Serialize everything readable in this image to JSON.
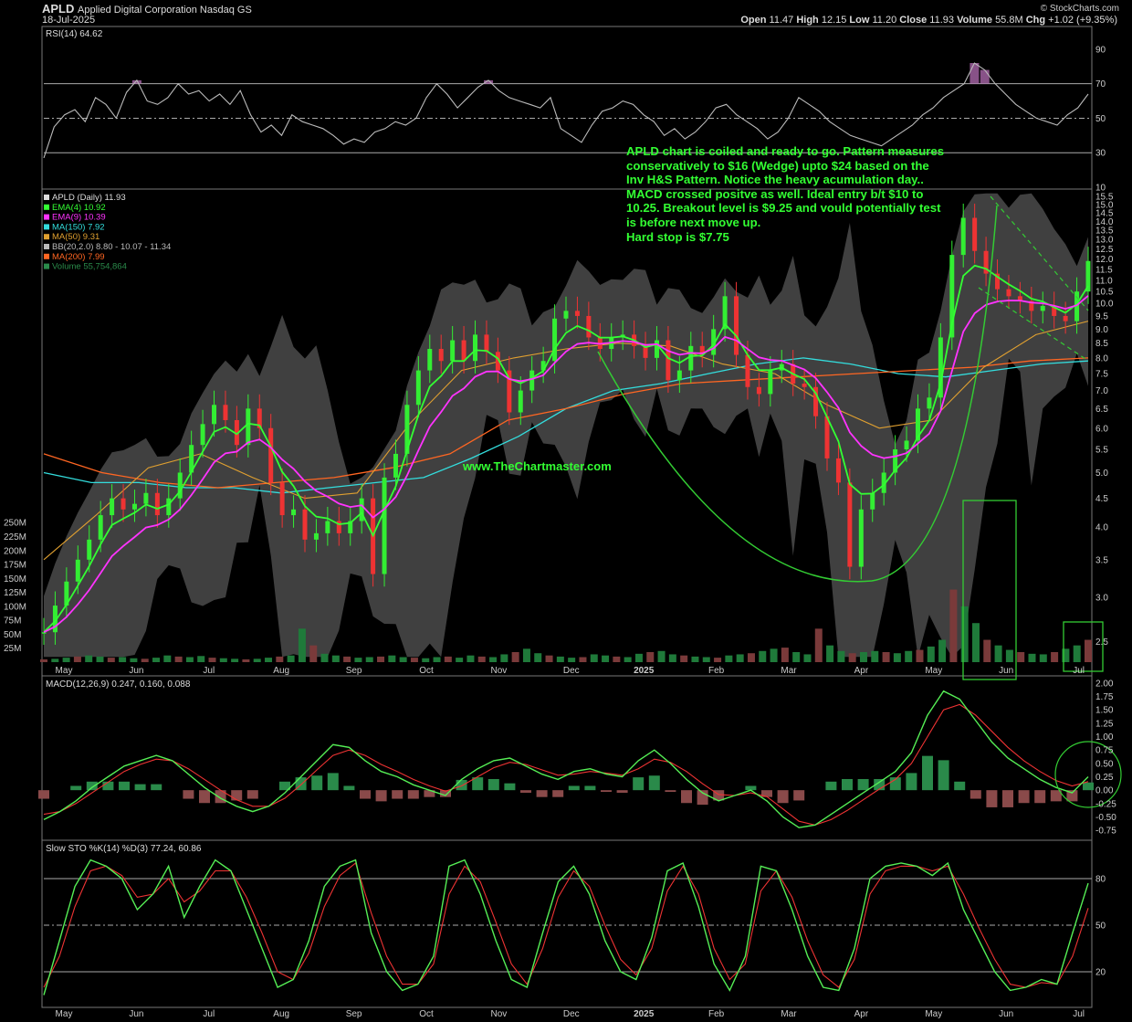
{
  "header": {
    "symbol": "APLD",
    "company": "Applied Digital Corporation",
    "exchange": "Nasdaq GS",
    "date": "18-Jul-2025",
    "brand": "© StockCharts.com",
    "open_label": "Open",
    "open": "11.47",
    "high_label": "High",
    "high": "12.15",
    "low_label": "Low",
    "low": "11.20",
    "close_label": "Close",
    "close": "11.93",
    "volume_label": "Volume",
    "volume": "55.8M",
    "chg_label": "Chg",
    "chg": "+1.02 (+9.35%)"
  },
  "annotation": {
    "lines": [
      "APLD chart is coiled and ready to go. Pattern measures",
      "conservatively to $16 (Wedge) upto $24 based on the",
      "Inv H&S Pattern. Notice the heavy acumulation day..",
      "MACD crossed positve as well. Ideal entry b/t $10 to",
      "10.25. Breakout level is $9.25 and vould potentially test",
      "is before next move up.",
      "Hard stop is $7.75"
    ],
    "watermark": "www.TheChartmaster.com"
  },
  "colors": {
    "price_up": "#33ee33",
    "price_down": "#ee3333",
    "ema4": "#33ff33",
    "ema9": "#ff33ff",
    "ma150": "#33dddd",
    "ma50": "#e0a030",
    "ma200": "#ff6622",
    "bb": "#555555",
    "volume": "#1f7a3a",
    "volume_down": "#7a3a3a",
    "rsi_line": "#bbbbbb",
    "rsi_fill": "#aa66aa",
    "macd_line": "#55ee55",
    "signal_line": "#ee3333",
    "hist_pos": "#2a8a4a",
    "hist_neg": "#8a4a4a",
    "sto_k": "#55ee55",
    "sto_d": "#ee3333",
    "annotation": "#33ff33",
    "wedge_line": "#33cc33"
  },
  "chart_data": [
    {
      "type": "line",
      "panel": "RSI",
      "title": "RSI(14) 64.62",
      "ylim": [
        10,
        100
      ],
      "y_ticks": [
        "90",
        "70",
        "50",
        "30",
        "10"
      ],
      "reference_lines": [
        70,
        50,
        30
      ],
      "series": [
        {
          "name": "RSI(14)",
          "values": [
            27,
            45,
            52,
            55,
            48,
            62,
            58,
            50,
            65,
            72,
            60,
            58,
            62,
            70,
            64,
            66,
            60,
            64,
            58,
            66,
            52,
            42,
            46,
            40,
            52,
            48,
            46,
            44,
            40,
            35,
            38,
            36,
            42,
            44,
            48,
            46,
            50,
            62,
            70,
            64,
            56,
            62,
            68,
            72,
            66,
            62,
            60,
            58,
            56,
            62,
            44,
            40,
            36,
            46,
            54,
            56,
            60,
            58,
            52,
            48,
            40,
            44,
            38,
            42,
            48,
            56,
            58,
            52,
            48,
            44,
            38,
            42,
            50,
            62,
            58,
            54,
            48,
            44,
            40,
            38,
            36,
            34,
            38,
            42,
            46,
            52,
            56,
            62,
            66,
            70,
            82,
            78,
            70,
            64,
            58,
            54,
            50,
            48,
            46,
            52,
            56,
            64
          ]
        }
      ]
    },
    {
      "type": "line",
      "panel": "Price",
      "title": "APLD (Daily) 11.93",
      "x_ticks": [
        "May",
        "Jun",
        "Jul",
        "Aug",
        "Sep",
        "Oct",
        "Nov",
        "Dec",
        "2025",
        "Feb",
        "Mar",
        "Apr",
        "May",
        "Jun",
        "Jul"
      ],
      "y_ticks": [
        "15.5",
        "15.0",
        "14.5",
        "14.0",
        "13.5",
        "13.0",
        "12.5",
        "12.0",
        "11.5",
        "11.0",
        "10.5",
        "10.0",
        "9.5",
        "9.0",
        "8.5",
        "8.0",
        "7.5",
        "7.0",
        "6.5",
        "6.0",
        "5.5",
        "5.0",
        "4.5",
        "4.0",
        "3.5",
        "3.0",
        "2.5"
      ],
      "y_scale": "log",
      "ylim": [
        2.3,
        15.8
      ],
      "legend": [
        {
          "label": "APLD (Daily) 11.93",
          "color": "#dddddd"
        },
        {
          "label": "EMA(4) 10.92",
          "color": "#33ff33"
        },
        {
          "label": "EMA(9) 10.39",
          "color": "#ff33ff"
        },
        {
          "label": "MA(150) 7.92",
          "color": "#33dddd"
        },
        {
          "label": "MA(50) 9.31",
          "color": "#e0a030"
        },
        {
          "label": "BB(20,2.0) 8.80 - 10.07 - 11.34",
          "color": "#bbbbbb"
        },
        {
          "label": "MA(200) 7.99",
          "color": "#ff6622"
        },
        {
          "label": "Volume 55,754,864",
          "color": "#2a8a4a"
        }
      ],
      "series": [
        {
          "name": "APLD",
          "values": [
            2.6,
            2.9,
            3.2,
            3.5,
            3.8,
            4.2,
            4.5,
            4.3,
            4.4,
            4.6,
            4.2,
            4.5,
            5.0,
            5.6,
            6.1,
            6.6,
            6.2,
            5.6,
            6.5,
            6.0,
            4.8,
            4.2,
            4.3,
            3.8,
            3.9,
            4.1,
            3.9,
            4.1,
            4.5,
            3.3,
            4.9,
            5.4,
            6.6,
            7.6,
            8.3,
            7.9,
            8.6,
            7.9,
            8.8,
            8.2,
            7.6,
            6.4,
            7.0,
            7.6,
            7.9,
            9.4,
            9.7,
            9.5,
            8.7,
            8.3,
            8.7,
            8.8,
            8.4,
            8.0,
            8.6,
            7.3,
            7.6,
            8.4,
            8.1,
            9.0,
            10.3,
            8.1,
            7.1,
            6.9,
            7.6,
            7.8,
            7.2,
            7.1,
            6.3,
            5.3,
            4.8,
            3.4,
            4.3,
            4.6,
            5.0,
            5.5,
            5.7,
            6.5,
            6.8,
            8.7,
            12.2,
            14.2,
            12.4,
            11.3,
            10.6,
            10.3,
            10.1,
            9.7,
            9.9,
            9.5,
            9.3,
            10.5,
            11.9
          ]
        },
        {
          "name": "MA(150)",
          "values": [
            5.0,
            4.8,
            4.8,
            4.7,
            4.7,
            4.6,
            4.7,
            4.8,
            4.9,
            5.3,
            5.8,
            6.5,
            7.0,
            7.2,
            7.5,
            7.8,
            8.0,
            7.8,
            7.5,
            7.4,
            7.6,
            7.8,
            7.9
          ]
        },
        {
          "name": "MA(200)",
          "values": [
            5.4,
            5.0,
            4.8,
            4.7,
            4.8,
            4.9,
            5.1,
            5.4,
            6.2,
            6.5,
            6.9,
            7.2,
            7.3,
            7.4,
            7.5,
            7.6,
            7.7,
            7.9,
            8.0
          ]
        },
        {
          "name": "MA(50)",
          "values": [
            3.5,
            4.2,
            5.1,
            5.4,
            4.9,
            4.5,
            4.6,
            6.1,
            7.6,
            8.0,
            8.3,
            8.5,
            8.4,
            7.8,
            7.5,
            6.6,
            6.0,
            6.2,
            7.7,
            8.8,
            9.3
          ]
        }
      ]
    },
    {
      "type": "bar",
      "panel": "Volume",
      "y_ticks": [
        "250M",
        "225M",
        "200M",
        "175M",
        "150M",
        "125M",
        "100M",
        "75M",
        "50M",
        "25M"
      ],
      "ylim": [
        0,
        270
      ],
      "series": [
        {
          "name": "Volume",
          "values": [
            5,
            6,
            8,
            10,
            12,
            10,
            8,
            9,
            7,
            6,
            8,
            12,
            10,
            9,
            11,
            8,
            7,
            6,
            5,
            6,
            8,
            10,
            12,
            60,
            30,
            15,
            12,
            10,
            8,
            9,
            10,
            12,
            9,
            8,
            7,
            9,
            10,
            8,
            12,
            10,
            9,
            14,
            18,
            24,
            16,
            12,
            10,
            8,
            9,
            14,
            12,
            10,
            9,
            15,
            18,
            20,
            14,
            12,
            10,
            9,
            8,
            12,
            14,
            16,
            20,
            24,
            26,
            18,
            14,
            60,
            30,
            20,
            16,
            18,
            20,
            18,
            16,
            20,
            22,
            28,
            40,
            130,
            100,
            70,
            40,
            30,
            22,
            18,
            15,
            14,
            18,
            24,
            30,
            40
          ]
        }
      ]
    },
    {
      "type": "line",
      "panel": "MACD",
      "title": "MACD(12,26,9) 0.247, 0.160, 0.088",
      "y_ticks": [
        "2.00",
        "1.75",
        "1.50",
        "1.25",
        "1.00",
        "0.75",
        "0.50",
        "0.25",
        "0.00",
        "-0.25",
        "-0.50",
        "-0.75"
      ],
      "ylim": [
        -0.85,
        2.05
      ],
      "series": [
        {
          "name": "MACD",
          "values": [
            -0.55,
            -0.4,
            -0.2,
            0.05,
            0.25,
            0.45,
            0.55,
            0.65,
            0.55,
            0.3,
            0.05,
            -0.15,
            -0.3,
            -0.4,
            -0.3,
            -0.05,
            0.25,
            0.55,
            0.85,
            0.8,
            0.55,
            0.35,
            0.25,
            0.1,
            0.0,
            -0.1,
            0.2,
            0.4,
            0.55,
            0.6,
            0.45,
            0.3,
            0.2,
            0.35,
            0.4,
            0.3,
            0.25,
            0.55,
            0.75,
            0.5,
            0.2,
            -0.05,
            -0.2,
            -0.1,
            0.0,
            -0.2,
            -0.5,
            -0.7,
            -0.65,
            -0.45,
            -0.25,
            -0.05,
            0.15,
            0.35,
            0.7,
            1.4,
            1.85,
            1.7,
            1.3,
            0.9,
            0.6,
            0.4,
            0.2,
            0.05,
            -0.05,
            0.25
          ]
        },
        {
          "name": "Signal",
          "values": [
            -0.45,
            -0.4,
            -0.25,
            -0.05,
            0.15,
            0.35,
            0.48,
            0.58,
            0.55,
            0.4,
            0.2,
            0.0,
            -0.18,
            -0.3,
            -0.3,
            -0.15,
            0.1,
            0.38,
            0.65,
            0.75,
            0.65,
            0.48,
            0.35,
            0.2,
            0.08,
            -0.02,
            0.08,
            0.25,
            0.42,
            0.52,
            0.48,
            0.38,
            0.28,
            0.3,
            0.35,
            0.32,
            0.28,
            0.4,
            0.58,
            0.52,
            0.35,
            0.12,
            -0.08,
            -0.1,
            -0.05,
            -0.12,
            -0.35,
            -0.58,
            -0.65,
            -0.55,
            -0.38,
            -0.18,
            0.02,
            0.2,
            0.5,
            1.0,
            1.5,
            1.6,
            1.4,
            1.1,
            0.8,
            0.55,
            0.35,
            0.18,
            0.08,
            0.16
          ]
        }
      ]
    },
    {
      "type": "line",
      "panel": "Slow STO",
      "title": "Slow STO %K(14) %D(3) 77.24, 60.86",
      "y_ticks": [
        "80",
        "50",
        "20"
      ],
      "ylim": [
        0,
        100
      ],
      "reference_lines": [
        80,
        50,
        20
      ],
      "series": [
        {
          "name": "%K",
          "values": [
            5,
            40,
            75,
            92,
            88,
            80,
            60,
            70,
            88,
            55,
            75,
            92,
            85,
            60,
            35,
            10,
            15,
            40,
            75,
            88,
            92,
            45,
            20,
            8,
            12,
            30,
            88,
            92,
            70,
            40,
            15,
            10,
            45,
            78,
            88,
            70,
            40,
            20,
            15,
            42,
            85,
            90,
            62,
            25,
            8,
            30,
            88,
            85,
            60,
            30,
            10,
            8,
            35,
            80,
            88,
            90,
            88,
            82,
            90,
            60,
            40,
            20,
            8,
            10,
            15,
            12,
            45,
            77
          ]
        },
        {
          "name": "%D",
          "values": [
            10,
            30,
            62,
            85,
            88,
            82,
            68,
            70,
            80,
            65,
            72,
            85,
            85,
            68,
            45,
            20,
            15,
            32,
            62,
            82,
            90,
            58,
            30,
            12,
            12,
            25,
            70,
            88,
            78,
            52,
            25,
            12,
            35,
            68,
            85,
            75,
            50,
            28,
            18,
            35,
            72,
            88,
            70,
            35,
            15,
            25,
            72,
            85,
            68,
            40,
            18,
            10,
            28,
            70,
            85,
            88,
            88,
            85,
            88,
            70,
            48,
            28,
            12,
            10,
            13,
            12,
            30,
            61
          ]
        }
      ]
    }
  ]
}
